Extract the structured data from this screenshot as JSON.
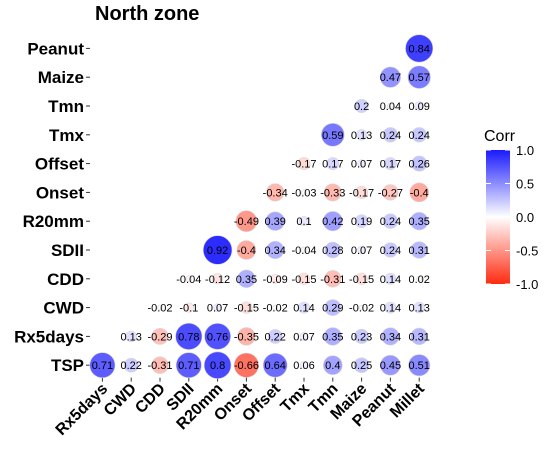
{
  "chart_data": {
    "type": "heatmap",
    "title": "North zone",
    "variables": [
      "Rx5days",
      "CWD",
      "CDD",
      "SDII",
      "R20mm",
      "Onset",
      "Offset",
      "Tmx",
      "Tmn",
      "Maize",
      "Peanut",
      "Millet"
    ],
    "rows_top_to_bottom": [
      "Peanut",
      "Maize",
      "Tmn",
      "Tmx",
      "Offset",
      "Onset",
      "R20mm",
      "SDII",
      "CDD",
      "CWD",
      "Rx5days",
      "TSP"
    ],
    "columns": [
      "Rx5days",
      "CWD",
      "CDD",
      "SDII",
      "R20mm",
      "Onset",
      "Offset",
      "Tmx",
      "Tmn",
      "Maize",
      "Peanut",
      "Millet"
    ],
    "cells": [
      {
        "row": "Peanut",
        "col": "Millet",
        "value": 0.84
      },
      {
        "row": "Maize",
        "col": "Peanut",
        "value": 0.47
      },
      {
        "row": "Maize",
        "col": "Millet",
        "value": 0.57
      },
      {
        "row": "Tmn",
        "col": "Maize",
        "value": 0.2
      },
      {
        "row": "Tmn",
        "col": "Peanut",
        "value": 0.04
      },
      {
        "row": "Tmn",
        "col": "Millet",
        "value": 0.09
      },
      {
        "row": "Tmx",
        "col": "Tmn",
        "value": 0.59
      },
      {
        "row": "Tmx",
        "col": "Maize",
        "value": 0.13
      },
      {
        "row": "Tmx",
        "col": "Peanut",
        "value": 0.24
      },
      {
        "row": "Tmx",
        "col": "Millet",
        "value": 0.24
      },
      {
        "row": "Offset",
        "col": "Tmx",
        "value": -0.17
      },
      {
        "row": "Offset",
        "col": "Tmn",
        "value": 0.17
      },
      {
        "row": "Offset",
        "col": "Maize",
        "value": 0.07
      },
      {
        "row": "Offset",
        "col": "Peanut",
        "value": 0.17
      },
      {
        "row": "Offset",
        "col": "Millet",
        "value": 0.26
      },
      {
        "row": "Onset",
        "col": "Offset",
        "value": -0.34
      },
      {
        "row": "Onset",
        "col": "Tmx",
        "value": -0.03
      },
      {
        "row": "Onset",
        "col": "Tmn",
        "value": -0.33
      },
      {
        "row": "Onset",
        "col": "Maize",
        "value": -0.17
      },
      {
        "row": "Onset",
        "col": "Peanut",
        "value": -0.27
      },
      {
        "row": "Onset",
        "col": "Millet",
        "value": -0.4
      },
      {
        "row": "R20mm",
        "col": "Onset",
        "value": -0.49
      },
      {
        "row": "R20mm",
        "col": "Offset",
        "value": 0.39
      },
      {
        "row": "R20mm",
        "col": "Tmx",
        "value": 0.1
      },
      {
        "row": "R20mm",
        "col": "Tmn",
        "value": 0.42
      },
      {
        "row": "R20mm",
        "col": "Maize",
        "value": 0.19
      },
      {
        "row": "R20mm",
        "col": "Peanut",
        "value": 0.24
      },
      {
        "row": "R20mm",
        "col": "Millet",
        "value": 0.35
      },
      {
        "row": "SDII",
        "col": "R20mm",
        "value": 0.92
      },
      {
        "row": "SDII",
        "col": "Onset",
        "value": -0.4
      },
      {
        "row": "SDII",
        "col": "Offset",
        "value": 0.34
      },
      {
        "row": "SDII",
        "col": "Tmx",
        "value": -0.04
      },
      {
        "row": "SDII",
        "col": "Tmn",
        "value": 0.28
      },
      {
        "row": "SDII",
        "col": "Maize",
        "value": 0.07
      },
      {
        "row": "SDII",
        "col": "Peanut",
        "value": 0.24
      },
      {
        "row": "SDII",
        "col": "Millet",
        "value": 0.31
      },
      {
        "row": "CDD",
        "col": "SDII",
        "value": -0.04
      },
      {
        "row": "CDD",
        "col": "R20mm",
        "value": -0.12
      },
      {
        "row": "CDD",
        "col": "Onset",
        "value": 0.35
      },
      {
        "row": "CDD",
        "col": "Offset",
        "value": -0.09
      },
      {
        "row": "CDD",
        "col": "Tmx",
        "value": -0.15
      },
      {
        "row": "CDD",
        "col": "Tmn",
        "value": -0.31
      },
      {
        "row": "CDD",
        "col": "Maize",
        "value": -0.15
      },
      {
        "row": "CDD",
        "col": "Peanut",
        "value": 0.14
      },
      {
        "row": "CDD",
        "col": "Millet",
        "value": 0.02
      },
      {
        "row": "CWD",
        "col": "CDD",
        "value": -0.02
      },
      {
        "row": "CWD",
        "col": "SDII",
        "value": -0.1
      },
      {
        "row": "CWD",
        "col": "R20mm",
        "value": 0.07
      },
      {
        "row": "CWD",
        "col": "Onset",
        "value": -0.15
      },
      {
        "row": "CWD",
        "col": "Offset",
        "value": -0.02
      },
      {
        "row": "CWD",
        "col": "Tmx",
        "value": 0.14
      },
      {
        "row": "CWD",
        "col": "Tmn",
        "value": 0.29
      },
      {
        "row": "CWD",
        "col": "Maize",
        "value": -0.02
      },
      {
        "row": "CWD",
        "col": "Peanut",
        "value": 0.14
      },
      {
        "row": "CWD",
        "col": "Millet",
        "value": 0.13
      },
      {
        "row": "Rx5days",
        "col": "CWD",
        "value": 0.13
      },
      {
        "row": "Rx5days",
        "col": "CDD",
        "value": -0.29
      },
      {
        "row": "Rx5days",
        "col": "SDII",
        "value": 0.78
      },
      {
        "row": "Rx5days",
        "col": "R20mm",
        "value": 0.76
      },
      {
        "row": "Rx5days",
        "col": "Onset",
        "value": -0.35
      },
      {
        "row": "Rx5days",
        "col": "Offset",
        "value": 0.22
      },
      {
        "row": "Rx5days",
        "col": "Tmx",
        "value": 0.07
      },
      {
        "row": "Rx5days",
        "col": "Tmn",
        "value": 0.35
      },
      {
        "row": "Rx5days",
        "col": "Maize",
        "value": 0.23
      },
      {
        "row": "Rx5days",
        "col": "Peanut",
        "value": 0.34
      },
      {
        "row": "Rx5days",
        "col": "Millet",
        "value": 0.31
      },
      {
        "row": "TSP",
        "col": "Rx5days",
        "value": 0.71
      },
      {
        "row": "TSP",
        "col": "CWD",
        "value": 0.22
      },
      {
        "row": "TSP",
        "col": "CDD",
        "value": -0.31
      },
      {
        "row": "TSP",
        "col": "SDII",
        "value": 0.71
      },
      {
        "row": "TSP",
        "col": "R20mm",
        "value": 0.8
      },
      {
        "row": "TSP",
        "col": "Onset",
        "value": -0.66
      },
      {
        "row": "TSP",
        "col": "Offset",
        "value": 0.64
      },
      {
        "row": "TSP",
        "col": "Tmx",
        "value": 0.06
      },
      {
        "row": "TSP",
        "col": "Tmn",
        "value": 0.4
      },
      {
        "row": "TSP",
        "col": "Maize",
        "value": 0.25
      },
      {
        "row": "TSP",
        "col": "Peanut",
        "value": 0.45
      },
      {
        "row": "TSP",
        "col": "Millet",
        "value": 0.51
      }
    ],
    "value_range": [
      -1,
      1
    ],
    "marker": "circle (size and color by correlation)",
    "legend": {
      "title": "Corr",
      "ticks": [
        "1.0",
        "0.5",
        "0.0",
        "-0.5",
        "-1.0"
      ],
      "placement": "right",
      "colors": {
        "high": "#1a1aff",
        "mid": "#ffffff",
        "low": "#ff2a10"
      }
    }
  }
}
